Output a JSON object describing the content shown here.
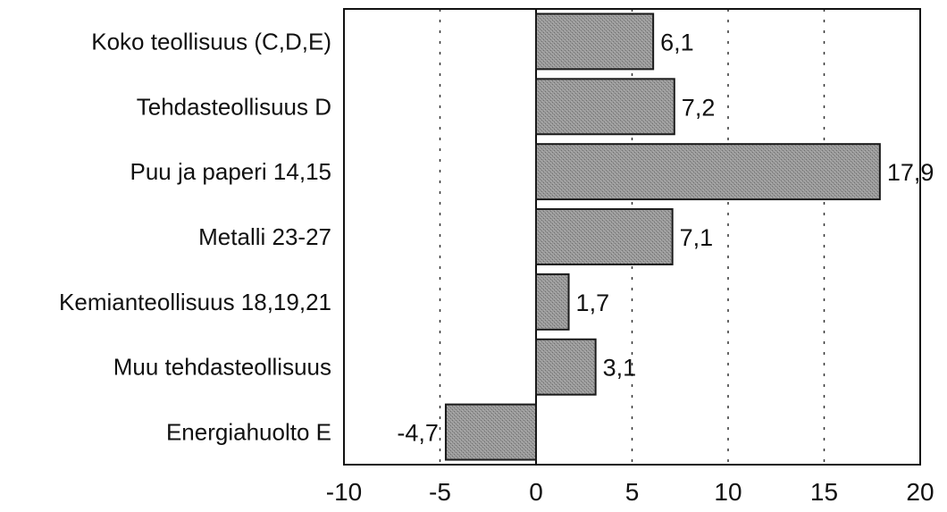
{
  "chart_data": {
    "type": "bar",
    "orientation": "horizontal",
    "title": "",
    "xlabel": "",
    "ylabel": "",
    "categories": [
      "Koko teollisuus (C,D,E)",
      "Tehdasteollisuus D",
      "Puu ja paperi 14,15",
      "Metalli 23-27",
      "Kemianteollisuus 18,19,21",
      "Muu tehdasteollisuus",
      "Energiahuolto E"
    ],
    "values": [
      6.1,
      7.2,
      17.9,
      7.1,
      1.7,
      3.1,
      -4.7
    ],
    "value_labels": [
      "6,1",
      "7,2",
      "17,9",
      "7,1",
      "1,7",
      "3,1",
      "-4,7"
    ],
    "xlim": [
      -10,
      20
    ],
    "xticks": [
      -10,
      -5,
      0,
      5,
      10,
      15,
      20
    ],
    "xtick_labels": [
      "-10",
      "-5",
      "0",
      "5",
      "10",
      "15",
      "20"
    ],
    "grid": "vertical dotted",
    "legend": "none",
    "bar_color": "#8c8c8c",
    "bar_edge_color": "#1a1a1a"
  }
}
